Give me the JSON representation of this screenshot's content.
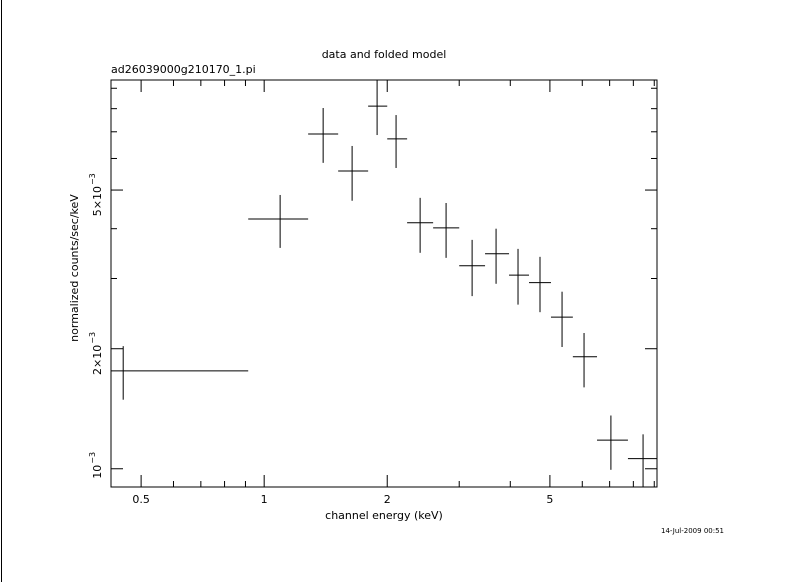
{
  "chart_data": {
    "type": "scatter",
    "title": "data and folded model",
    "subtitle": "ad26039000g210170_1.pi",
    "xlabel": "channel energy (keV)",
    "ylabel": "normalized counts/sec/keV",
    "footnote": "14-Jul-2009 00:51",
    "xscale": "log",
    "yscale": "log",
    "color": "#000000",
    "xlim": [
      0.422,
      9.14
    ],
    "ylim": [
      0.0009,
      0.00944
    ],
    "xticks": [
      0.5,
      1,
      2,
      5
    ],
    "xminorticks": [
      0.6,
      0.7,
      0.8,
      0.9,
      3,
      4,
      6,
      7,
      8,
      9
    ],
    "yticks": [
      {
        "value": 0.001,
        "label": "10",
        "exponent": "−3"
      },
      {
        "value": 0.002,
        "label": "2×10",
        "exponent": "−3"
      },
      {
        "value": 0.005,
        "label": "5×10",
        "exponent": "−3"
      }
    ],
    "yminorticks": [
      0.003,
      0.004,
      0.006,
      0.007,
      0.008,
      0.009
    ],
    "x": [
      0.452,
      1.094,
      1.394,
      1.641,
      1.889,
      2.102,
      2.407,
      2.786,
      3.226,
      3.692,
      4.178,
      4.729,
      5.354,
      6.06,
      7.05,
      8.45
    ],
    "x_low": [
      0.422,
      0.914,
      1.281,
      1.517,
      1.796,
      2.0,
      2.237,
      2.59,
      3.0,
      3.47,
      3.972,
      4.445,
      5.03,
      5.69,
      6.52,
      7.76
    ],
    "x_high": [
      0.914,
      1.281,
      1.517,
      1.796,
      2.0,
      2.237,
      2.59,
      3.0,
      3.47,
      3.972,
      4.445,
      5.03,
      5.69,
      6.52,
      7.76,
      9.14
    ],
    "values": [
      0.00176,
      0.00423,
      0.00691,
      0.00558,
      0.00812,
      0.00672,
      0.00414,
      0.00402,
      0.00323,
      0.00346,
      0.00306,
      0.00293,
      0.0024,
      0.00191,
      0.00118,
      0.00106
    ],
    "y_low": [
      0.00149,
      0.00358,
      0.00585,
      0.0047,
      0.00687,
      0.00568,
      0.00348,
      0.00338,
      0.00271,
      0.00291,
      0.00258,
      0.00247,
      0.00202,
      0.0016,
      0.000994,
      0.0009
    ],
    "y_high": [
      0.00203,
      0.00486,
      0.00803,
      0.00645,
      0.00944,
      0.00771,
      0.00478,
      0.00464,
      0.00375,
      0.004,
      0.00356,
      0.0034,
      0.00278,
      0.00219,
      0.00136,
      0.00122
    ]
  }
}
